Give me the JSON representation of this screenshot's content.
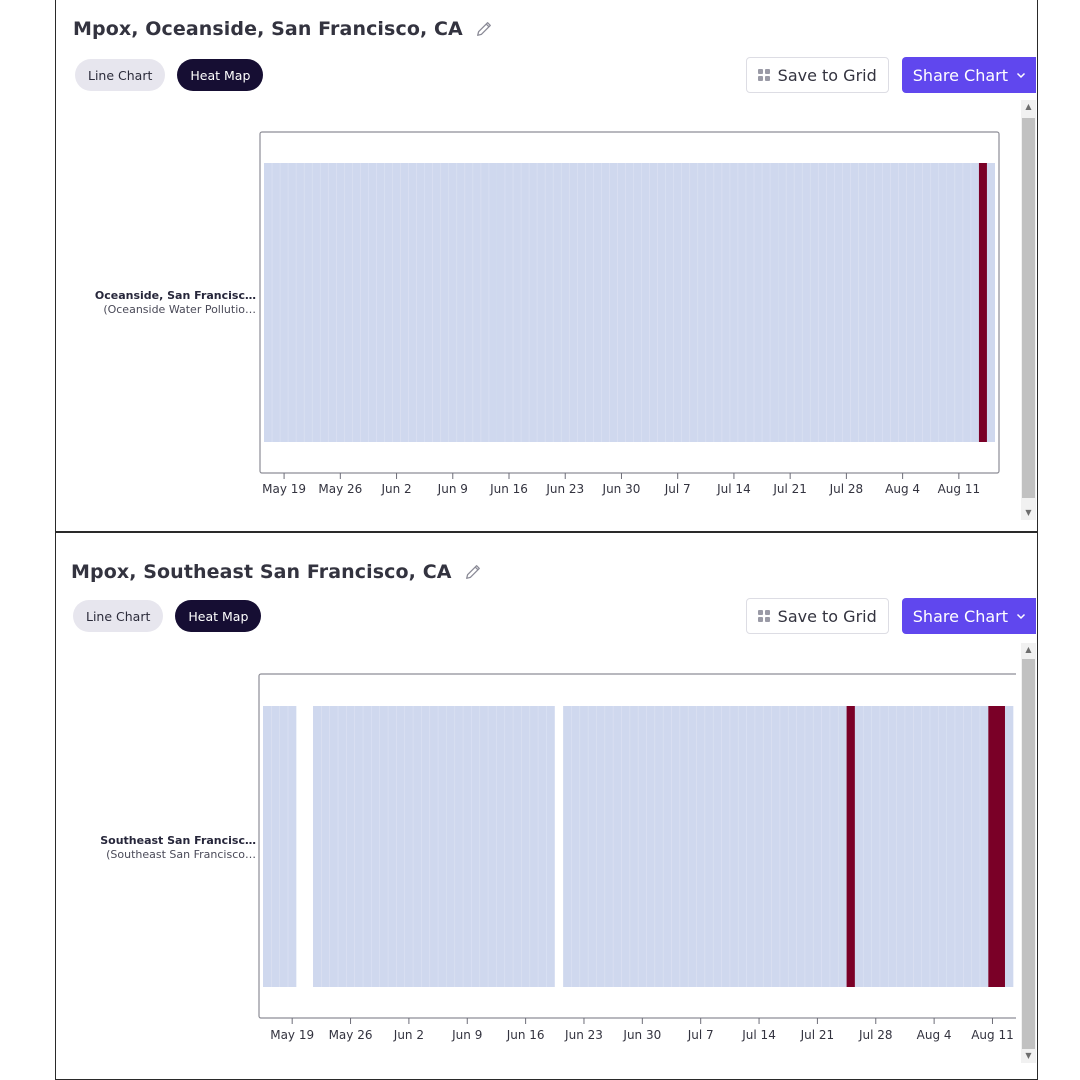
{
  "colors": {
    "low": "#cfd8ee",
    "high": "#7a0027",
    "accent": "#6047ee",
    "dark_pill": "#160e33"
  },
  "panels": [
    {
      "title": "Mpox, Oceanside, San Francisco, CA",
      "toggle_line": "Line Chart",
      "toggle_heat": "Heat Map",
      "save_label": "Save to Grid",
      "share_label": "Share Chart",
      "row_label_1": "Oceanside, San Francisc…",
      "row_label_2": "(Oceanside Water Pollutio…"
    },
    {
      "title": "Mpox, Southeast San Francisco, CA",
      "toggle_line": "Line Chart",
      "toggle_heat": "Heat Map",
      "save_label": "Save to Grid",
      "share_label": "Share Chart",
      "row_label_1": "Southeast San Francisc…",
      "row_label_2": "(Southeast San Francisco…"
    }
  ],
  "chart_data": [
    {
      "type": "heatmap",
      "title": "Mpox, Oceanside, San Francisco, CA",
      "rows": [
        "Oceanside, San Francisc… (Oceanside Water Pollutio…"
      ],
      "x_ticks": [
        "May 19",
        "May 26",
        "Jun 2",
        "Jun 9",
        "Jun 16",
        "Jun 23",
        "Jun 30",
        "Jul 7",
        "Jul 14",
        "Jul 21",
        "Jul 28",
        "Aug 4",
        "Aug 11"
      ],
      "x_range_days": [
        -2.5,
        88.5
      ],
      "day_zero": "May 19",
      "cells": [
        {
          "start_day": -2,
          "end_day": 26,
          "level": "low"
        },
        {
          "start_day": 27,
          "end_day": 61,
          "level": "low"
        },
        {
          "start_day": 62,
          "end_day": 82,
          "level": "low"
        },
        {
          "start_day": 83,
          "end_day": 86,
          "level": "low"
        },
        {
          "start_day": 87,
          "end_day": 87,
          "level": "high"
        },
        {
          "start_day": 88,
          "end_day": 88,
          "level": "low"
        }
      ]
    },
    {
      "type": "heatmap",
      "title": "Mpox, Southeast San Francisco, CA",
      "rows": [
        "Southeast San Francisc… (Southeast San Francisco…"
      ],
      "x_ticks": [
        "May 19",
        "May 26",
        "Jun 2",
        "Jun 9",
        "Jun 16",
        "Jun 23",
        "Jun 30",
        "Jul 7",
        "Jul 14",
        "Jul 21",
        "Jul 28",
        "Aug 4",
        "Aug 11"
      ],
      "x_range_days": [
        -3.5,
        88.5
      ],
      "day_zero": "May 19",
      "cells": [
        {
          "start_day": -3,
          "end_day": 0,
          "level": "low"
        },
        {
          "start_day": 3,
          "end_day": 31,
          "level": "low"
        },
        {
          "start_day": 33,
          "end_day": 66,
          "level": "low"
        },
        {
          "start_day": 67,
          "end_day": 67,
          "level": "high"
        },
        {
          "start_day": 68,
          "end_day": 83,
          "level": "low"
        },
        {
          "start_day": 84,
          "end_day": 85,
          "level": "high"
        },
        {
          "start_day": 86,
          "end_day": 86,
          "level": "low"
        }
      ]
    }
  ]
}
